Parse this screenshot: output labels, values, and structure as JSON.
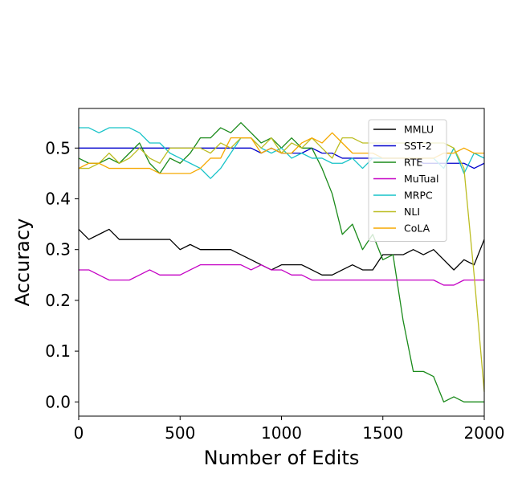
{
  "chart_data": {
    "type": "line",
    "title": "",
    "xlabel": "Number of Edits",
    "ylabel": "Accuracy",
    "xlim": [
      0,
      2000
    ],
    "ylim": [
      -0.028,
      0.578
    ],
    "xticks": [
      0,
      500,
      1000,
      1500,
      2000
    ],
    "xtick_labels": [
      "0",
      "500",
      "1000",
      "1500",
      "2000"
    ],
    "yticks": [
      0.0,
      0.1,
      0.2,
      0.3,
      0.4,
      0.5
    ],
    "ytick_labels": [
      "0.0",
      "0.1",
      "0.2",
      "0.3",
      "0.4",
      "0.5"
    ],
    "grid": false,
    "legend": "upper-right",
    "x": [
      0,
      50,
      100,
      150,
      200,
      250,
      300,
      350,
      400,
      450,
      500,
      550,
      600,
      650,
      700,
      750,
      800,
      850,
      900,
      950,
      1000,
      1050,
      1100,
      1150,
      1200,
      1250,
      1300,
      1350,
      1400,
      1450,
      1500,
      1550,
      1600,
      1650,
      1700,
      1750,
      1800,
      1850,
      1900,
      1950,
      2000
    ],
    "series": [
      {
        "name": "MMLU",
        "color": "#000000",
        "values": [
          0.34,
          0.32,
          0.33,
          0.34,
          0.32,
          0.32,
          0.32,
          0.32,
          0.32,
          0.32,
          0.3,
          0.31,
          0.3,
          0.3,
          0.3,
          0.3,
          0.29,
          0.28,
          0.27,
          0.26,
          0.27,
          0.27,
          0.27,
          0.26,
          0.25,
          0.25,
          0.26,
          0.27,
          0.26,
          0.26,
          0.29,
          0.29,
          0.29,
          0.3,
          0.29,
          0.3,
          0.28,
          0.26,
          0.28,
          0.27,
          0.32
        ]
      },
      {
        "name": "SST-2",
        "color": "#0000cc",
        "values": [
          0.5,
          0.5,
          0.5,
          0.5,
          0.5,
          0.5,
          0.5,
          0.5,
          0.5,
          0.5,
          0.5,
          0.5,
          0.5,
          0.5,
          0.5,
          0.5,
          0.5,
          0.5,
          0.49,
          0.5,
          0.49,
          0.49,
          0.49,
          0.5,
          0.49,
          0.49,
          0.48,
          0.48,
          0.48,
          0.48,
          0.48,
          0.48,
          0.48,
          0.48,
          0.47,
          0.47,
          0.47,
          0.47,
          0.47,
          0.46,
          0.47
        ]
      },
      {
        "name": "RTE",
        "color": "#1a8a1a",
        "values": [
          0.48,
          0.47,
          0.47,
          0.48,
          0.47,
          0.49,
          0.51,
          0.47,
          0.45,
          0.48,
          0.47,
          0.49,
          0.52,
          0.52,
          0.54,
          0.53,
          0.55,
          0.53,
          0.51,
          0.52,
          0.5,
          0.52,
          0.5,
          0.5,
          0.46,
          0.41,
          0.33,
          0.35,
          0.3,
          0.33,
          0.28,
          0.29,
          0.16,
          0.06,
          0.06,
          0.05,
          0.0,
          0.01,
          0.0,
          0.0,
          0.0
        ]
      },
      {
        "name": "MuTual",
        "color": "#c400c4",
        "values": [
          0.26,
          0.26,
          0.25,
          0.24,
          0.24,
          0.24,
          0.25,
          0.26,
          0.25,
          0.25,
          0.25,
          0.26,
          0.27,
          0.27,
          0.27,
          0.27,
          0.27,
          0.26,
          0.27,
          0.26,
          0.26,
          0.25,
          0.25,
          0.24,
          0.24,
          0.24,
          0.24,
          0.24,
          0.24,
          0.24,
          0.24,
          0.24,
          0.24,
          0.24,
          0.24,
          0.24,
          0.23,
          0.23,
          0.24,
          0.24,
          0.24
        ]
      },
      {
        "name": "MRPC",
        "color": "#17c3c8",
        "values": [
          0.54,
          0.54,
          0.53,
          0.54,
          0.54,
          0.54,
          0.53,
          0.51,
          0.51,
          0.49,
          0.48,
          0.47,
          0.46,
          0.44,
          0.46,
          0.49,
          0.52,
          0.52,
          0.5,
          0.49,
          0.5,
          0.48,
          0.49,
          0.48,
          0.48,
          0.47,
          0.47,
          0.48,
          0.46,
          0.48,
          0.48,
          0.48,
          0.48,
          0.48,
          0.48,
          0.48,
          0.46,
          0.5,
          0.45,
          0.49,
          0.48
        ]
      },
      {
        "name": "NLI",
        "color": "#bcbd22",
        "values": [
          0.46,
          0.46,
          0.47,
          0.49,
          0.47,
          0.48,
          0.5,
          0.48,
          0.47,
          0.5,
          0.5,
          0.5,
          0.5,
          0.49,
          0.51,
          0.5,
          0.52,
          0.52,
          0.5,
          0.52,
          0.49,
          0.51,
          0.5,
          0.52,
          0.5,
          0.48,
          0.52,
          0.52,
          0.51,
          0.51,
          0.51,
          0.51,
          0.51,
          0.51,
          0.51,
          0.51,
          0.51,
          0.5,
          0.46,
          0.25,
          0.02
        ]
      },
      {
        "name": "CoLA",
        "color": "#f5a800",
        "values": [
          0.46,
          0.47,
          0.47,
          0.46,
          0.46,
          0.46,
          0.46,
          0.46,
          0.45,
          0.45,
          0.45,
          0.45,
          0.46,
          0.48,
          0.48,
          0.52,
          0.52,
          0.52,
          0.49,
          0.5,
          0.49,
          0.49,
          0.51,
          0.52,
          0.51,
          0.53,
          0.51,
          0.49,
          0.49,
          0.49,
          0.48,
          0.48,
          0.48,
          0.48,
          0.48,
          0.48,
          0.49,
          0.49,
          0.5,
          0.49,
          0.49
        ]
      }
    ]
  }
}
